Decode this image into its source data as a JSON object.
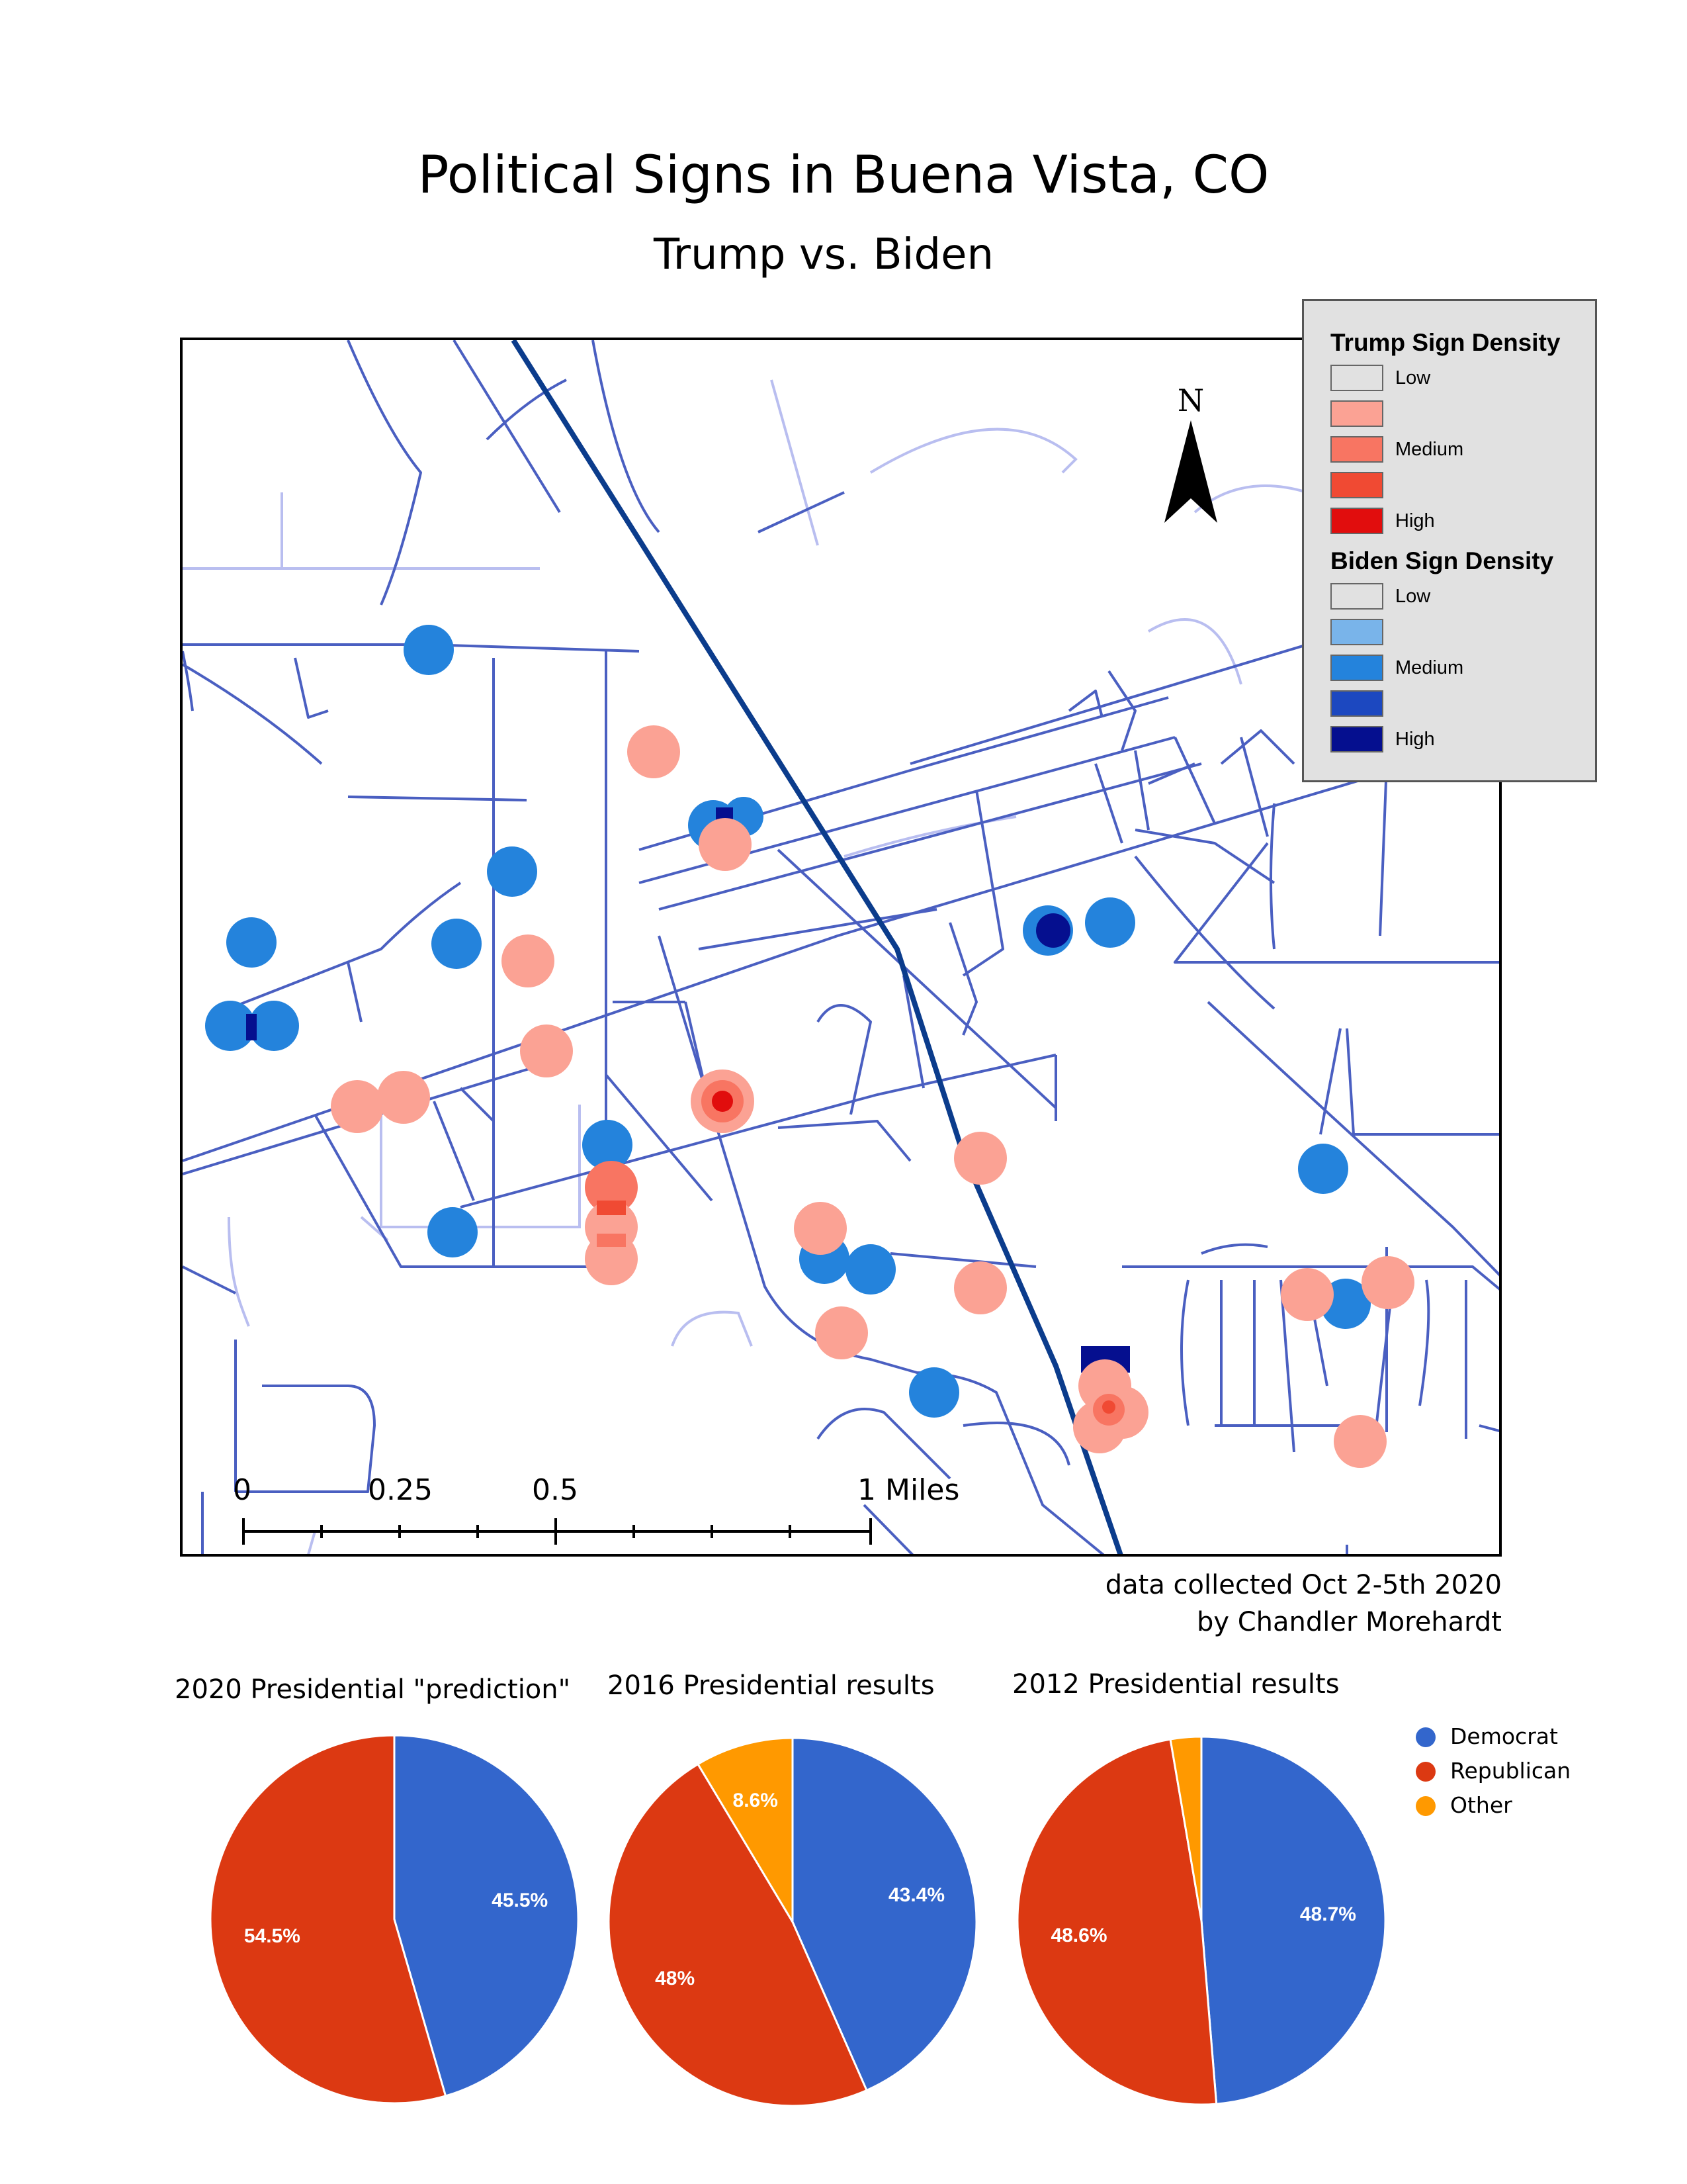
{
  "title": "Political Signs in Buena Vista, CO",
  "subtitle": "Trump vs. Biden",
  "map": {
    "north_label": "N",
    "legend": {
      "trump_title": "Trump Sign Density",
      "trump_items": [
        {
          "label": "Low",
          "color": "#e1e1e1"
        },
        {
          "label": "",
          "color": "#fba294"
        },
        {
          "label": "Medium",
          "color": "#f87562"
        },
        {
          "label": "",
          "color": "#f04a33"
        },
        {
          "label": "High",
          "color": "#e10d0d"
        }
      ],
      "biden_title": "Biden Sign Density",
      "biden_items": [
        {
          "label": "Low",
          "color": "#e1e1e1"
        },
        {
          "label": "",
          "color": "#79b4ea"
        },
        {
          "label": "Medium",
          "color": "#2483dc"
        },
        {
          "label": "",
          "color": "#1c48c0"
        },
        {
          "label": "High",
          "color": "#050f8f"
        }
      ]
    },
    "scale_bar": {
      "labels": [
        "0",
        "0.25",
        "0.5",
        "1 Miles"
      ]
    },
    "credit_line1": "data collected Oct 2-5th 2020",
    "credit_line2": "by Chandler Morehardt"
  },
  "pies": [
    {
      "title": "2020 Presidential \"prediction\"",
      "slices": [
        {
          "party": "Democrat",
          "value": 45.5,
          "label": "45.5%"
        },
        {
          "party": "Republican",
          "value": 54.5,
          "label": "54.5%"
        }
      ]
    },
    {
      "title": "2016 Presidential results",
      "slices": [
        {
          "party": "Democrat",
          "value": 43.4,
          "label": "43.4%"
        },
        {
          "party": "Republican",
          "value": 48,
          "label": "48%"
        },
        {
          "party": "Other",
          "value": 8.6,
          "label": "8.6%"
        }
      ]
    },
    {
      "title": "2012 Presidential results",
      "slices": [
        {
          "party": "Democrat",
          "value": 48.7,
          "label": "48.7%"
        },
        {
          "party": "Republican",
          "value": 48.6,
          "label": "48.6%"
        },
        {
          "party": "Other",
          "value": 2.7,
          "label": ""
        }
      ]
    }
  ],
  "pie_legend": [
    {
      "label": "Democrat",
      "color": "#3366cc"
    },
    {
      "label": "Republican",
      "color": "#dc3912"
    },
    {
      "label": "Other",
      "color": "#ff9900"
    }
  ],
  "colors": {
    "road": "#4a5fc1",
    "road_light": "#b9bef0",
    "highway": "#0b3c8c",
    "democrat": "#3366cc",
    "republican": "#dc3912",
    "other": "#ff9900"
  },
  "chart_data": [
    {
      "type": "pie",
      "title": "2020 Presidential \"prediction\"",
      "categories": [
        "Democrat",
        "Republican"
      ],
      "values": [
        45.5,
        54.5
      ]
    },
    {
      "type": "pie",
      "title": "2016 Presidential results",
      "categories": [
        "Democrat",
        "Republican",
        "Other"
      ],
      "values": [
        43.4,
        48,
        8.6
      ]
    },
    {
      "type": "pie",
      "title": "2012 Presidential results",
      "categories": [
        "Democrat",
        "Republican",
        "Other"
      ],
      "values": [
        48.7,
        48.6,
        2.7
      ]
    }
  ]
}
